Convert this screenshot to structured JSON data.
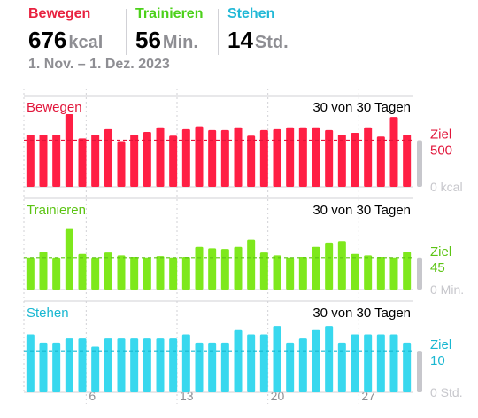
{
  "summary": {
    "move": {
      "label": "Bewegen",
      "value": "676",
      "unit": "kcal",
      "color": "#e8213f"
    },
    "exercise": {
      "label": "Trainieren",
      "value": "56",
      "unit": "Min.",
      "color": "#4cd11a"
    },
    "stand": {
      "label": "Stehen",
      "value": "14",
      "unit": "Std.",
      "color": "#21b8d6"
    },
    "date_range": "1. Nov. – 1. Dez. 2023"
  },
  "chart_data": [
    {
      "type": "bar",
      "title": "Bewegen",
      "days_label": "30 von 30 Tagen",
      "goal_label": "Ziel",
      "goal_value": "500",
      "goal": 500,
      "zero_label": "0 kcal",
      "ylim": [
        0,
        980
      ],
      "color": "#ff1f44",
      "color_dark": "#e1153a",
      "x": [
        1,
        2,
        3,
        4,
        5,
        6,
        7,
        8,
        9,
        10,
        11,
        12,
        13,
        14,
        15,
        16,
        17,
        18,
        19,
        20,
        21,
        22,
        23,
        24,
        25,
        26,
        27,
        28,
        29,
        30
      ],
      "values": [
        560,
        560,
        560,
        780,
        520,
        560,
        620,
        490,
        560,
        590,
        640,
        550,
        620,
        650,
        610,
        610,
        640,
        550,
        610,
        620,
        640,
        640,
        640,
        610,
        560,
        580,
        640,
        540,
        750,
        560
      ]
    },
    {
      "type": "bar",
      "title": "Trainieren",
      "days_label": "30 von 30 Tagen",
      "goal_label": "Ziel",
      "goal_value": "45",
      "goal": 45,
      "zero_label": "0 Min.",
      "ylim": [
        0,
        128
      ],
      "color": "#7ee81c",
      "color_dark": "#5cc414",
      "x": [
        1,
        2,
        3,
        4,
        5,
        6,
        7,
        8,
        9,
        10,
        11,
        12,
        13,
        14,
        15,
        16,
        17,
        18,
        19,
        20,
        21,
        22,
        23,
        24,
        25,
        26,
        27,
        28,
        29,
        30
      ],
      "values": [
        45,
        53,
        45,
        85,
        50,
        45,
        52,
        48,
        46,
        45,
        47,
        45,
        46,
        60,
        58,
        57,
        60,
        70,
        52,
        48,
        45,
        46,
        60,
        66,
        68,
        50,
        48,
        46,
        45,
        53
      ]
    },
    {
      "type": "bar",
      "title": "Stehen",
      "days_label": "30 von 30 Tagen",
      "goal_label": "Ziel",
      "goal_value": "10",
      "goal": 10,
      "zero_label": "0 Std.",
      "ylim": [
        0,
        22
      ],
      "color": "#38d8ee",
      "color_dark": "#19b7d1",
      "x": [
        1,
        2,
        3,
        4,
        5,
        6,
        7,
        8,
        9,
        10,
        11,
        12,
        13,
        14,
        15,
        16,
        17,
        18,
        19,
        20,
        21,
        22,
        23,
        24,
        25,
        26,
        27,
        28,
        29,
        30
      ],
      "values": [
        14,
        12,
        12,
        13,
        13,
        11,
        13,
        13,
        13,
        13,
        13,
        13,
        14,
        12,
        12,
        12,
        15,
        14,
        14,
        16,
        12,
        13,
        15,
        16,
        12,
        14,
        14,
        14,
        14,
        12
      ]
    }
  ],
  "x_axis": {
    "tick_labels": [
      "6",
      "13",
      "20",
      "27"
    ],
    "tick_days": [
      6,
      13,
      20,
      27
    ]
  }
}
